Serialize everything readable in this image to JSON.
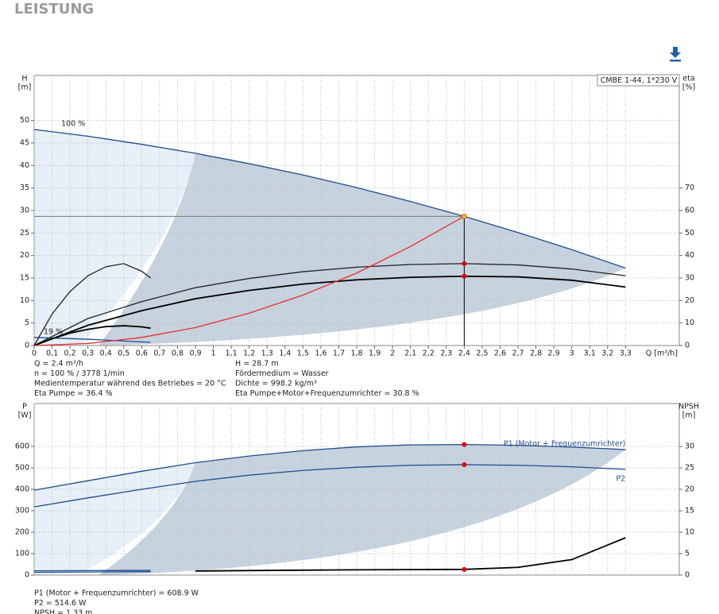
{
  "title": "LEISTUNG",
  "chart_data": [
    {
      "type": "line",
      "y_label": "H",
      "y_unit": "[m]",
      "y2_label": "eta",
      "y2_unit": "[%]",
      "x_label": "Q [m³/h]",
      "legend": "CMBE 1-44, 1*230 V",
      "xlim": [
        0,
        3.6
      ],
      "xticks": [
        0,
        {
          "value": 0.1,
          "label": "0,1"
        },
        {
          "value": 0.2,
          "label": "0,2"
        },
        {
          "value": 0.3,
          "label": "0,3"
        },
        {
          "value": 0.4,
          "label": "0,4"
        },
        {
          "value": 0.5,
          "label": "0,5"
        },
        {
          "value": 0.6,
          "label": "0,6"
        },
        {
          "value": 0.7,
          "label": "0,7"
        },
        {
          "value": 0.8,
          "label": "0,8"
        },
        {
          "value": 0.9,
          "label": "0,9"
        },
        1,
        {
          "value": 1.1,
          "label": "1,1"
        },
        {
          "value": 1.2,
          "label": "1,2"
        },
        {
          "value": 1.3,
          "label": "1,3"
        },
        {
          "value": 1.4,
          "label": "1,4"
        },
        {
          "value": 1.5,
          "label": "1,5"
        },
        {
          "value": 1.6,
          "label": "1,6"
        },
        {
          "value": 1.7,
          "label": "1,7"
        },
        {
          "value": 1.8,
          "label": "1,8"
        },
        {
          "value": 1.9,
          "label": "1,9"
        },
        2,
        {
          "value": 2.1,
          "label": "2,1"
        },
        {
          "value": 2.2,
          "label": "2,2"
        },
        {
          "value": 2.3,
          "label": "2,3"
        },
        {
          "value": 2.4,
          "label": "2,4"
        },
        {
          "value": 2.5,
          "label": "2,5"
        },
        {
          "value": 2.6,
          "label": "2,6"
        },
        {
          "value": 2.7,
          "label": "2,7"
        },
        {
          "value": 2.8,
          "label": "2,8"
        },
        {
          "value": 2.9,
          "label": "2,9"
        },
        3,
        {
          "value": 3.1,
          "label": "3,1"
        },
        {
          "value": 3.2,
          "label": "3,2"
        },
        {
          "value": 3.3,
          "label": "3,3"
        }
      ],
      "ylim": [
        0,
        60
      ],
      "yticks": [
        0,
        5,
        10,
        15,
        20,
        25,
        30,
        35,
        40,
        45,
        50
      ],
      "y2lim": [
        0,
        120
      ],
      "y2ticks": [
        0,
        10,
        20,
        30,
        40,
        50,
        60,
        70
      ],
      "grid": true,
      "guides": true,
      "series_label": "start",
      "series": [
        {
          "name": "100 %",
          "color": "#1f4e8c",
          "x": [
            0,
            0.3,
            0.6,
            0.9,
            1.2,
            1.5,
            1.8,
            2.1,
            2.4,
            2.7,
            3.0,
            3.3
          ],
          "values": [
            48,
            46.5,
            44.7,
            42.7,
            40.4,
            37.9,
            35.1,
            32.0,
            28.7,
            25.1,
            21.3,
            17.2
          ]
        },
        {
          "name": "19 %",
          "color": "#1f4e8c",
          "x": [
            0,
            0.3,
            0.65
          ],
          "values": [
            1.8,
            1.4,
            0.7
          ]
        },
        {
          "color": "#222222",
          "axis": "y2",
          "x": [
            0,
            0.3,
            0.6,
            0.9,
            1.2,
            1.5,
            1.8,
            2.1,
            2.4,
            2.7,
            3.0,
            3.3
          ],
          "values": [
            0,
            12,
            19.5,
            25.7,
            29.8,
            32.8,
            34.8,
            36,
            36.4,
            35.8,
            34,
            31
          ]
        },
        {
          "color": "#000000",
          "axis": "y2",
          "x": [
            0,
            0.3,
            0.6,
            0.9,
            1.2,
            1.5,
            1.8,
            2.1,
            2.4,
            2.7,
            3.0,
            3.3
          ],
          "values": [
            0,
            9,
            15.5,
            20.8,
            24.5,
            27.3,
            29.2,
            30.3,
            30.8,
            30.5,
            29,
            26
          ]
        },
        {
          "color": "#222222",
          "axis": "y2",
          "x": [
            0,
            0.1,
            0.2,
            0.3,
            0.4,
            0.5,
            0.6,
            0.65
          ],
          "values": [
            0,
            14,
            24,
            31,
            35,
            36.4,
            33,
            30
          ]
        },
        {
          "color": "#000000",
          "axis": "y2",
          "x": [
            0,
            0.1,
            0.2,
            0.3,
            0.4,
            0.5,
            0.6,
            0.65
          ],
          "values": [
            0,
            3,
            5.5,
            7.2,
            8.4,
            8.8,
            8.3,
            7.7
          ]
        },
        {
          "color": "#e83030",
          "x": [
            0,
            0.3,
            0.6,
            0.9,
            1.2,
            1.5,
            1.8,
            2.1,
            2.4
          ],
          "values": [
            0,
            0.45,
            1.8,
            4.0,
            7.2,
            11.2,
            16.1,
            22.0,
            28.7
          ]
        }
      ],
      "points": [
        {
          "x": 2.4,
          "y": 28.7,
          "color": "#f2b233"
        },
        {
          "x": 2.4,
          "y": 36.4,
          "axis": "y2",
          "color": "#e00000"
        },
        {
          "x": 2.4,
          "y": 30.8,
          "axis": "y2",
          "color": "#e00000"
        }
      ],
      "info": [
        [
          "Q = 2.4 m³/h",
          "n = 100 % / 3778 1/min",
          "Medientemperatur während des Betriebes = 20 °C",
          "Eta Pumpe = 36.4 %"
        ],
        [
          "H = 28.7 m",
          "Fördermedium = Wasser",
          "Dichte = 998.2 kg/m³",
          "Eta Pumpe+Motor+Frequenzumrichter = 30.8 %"
        ]
      ]
    },
    {
      "type": "line",
      "y_label": "P",
      "y_unit": "[W]",
      "y2_label": "NPSH",
      "y2_unit": "[m]",
      "xlim": [
        0,
        3.6
      ],
      "ylim": [
        0,
        800
      ],
      "yticks": [
        0,
        100,
        200,
        300,
        400,
        500,
        600
      ],
      "y2lim": [
        0,
        40
      ],
      "y2ticks": [
        0,
        5,
        10,
        15,
        20,
        25,
        30
      ],
      "grid": true,
      "series_label": "end",
      "series": [
        {
          "name": "P1 (Motor + Frequenzumrichter)",
          "color": "#1f4e8c",
          "x": [
            0,
            0.3,
            0.6,
            0.9,
            1.2,
            1.5,
            1.8,
            2.1,
            2.4,
            2.7,
            3.0,
            3.3
          ],
          "values": [
            396,
            440,
            484,
            524,
            555,
            580,
            598,
            607,
            608.9,
            605,
            597,
            585
          ]
        },
        {
          "name": "P2",
          "color": "#1f4e8c",
          "x": [
            0,
            0.3,
            0.6,
            0.9,
            1.2,
            1.5,
            1.8,
            2.1,
            2.4,
            2.7,
            3.0,
            3.3
          ],
          "values": [
            318,
            360,
            400,
            437,
            466,
            488,
            503,
            512,
            514.6,
            512,
            505,
            493
          ]
        },
        {
          "color": "#000000",
          "axis": "y2",
          "x": [
            0.9,
            1.2,
            1.5,
            1.8,
            2.1,
            2.4,
            2.7,
            3.0,
            3.3
          ],
          "values": [
            0.95,
            1.05,
            1.15,
            1.22,
            1.28,
            1.33,
            1.8,
            3.6,
            8.7
          ]
        },
        {
          "color": "#1f4e8c",
          "x": [
            0,
            0.65
          ],
          "values": [
            20,
            22
          ]
        },
        {
          "color": "#1f4e8c",
          "x": [
            0,
            0.65
          ],
          "values": [
            13,
            16
          ]
        }
      ],
      "points": [
        {
          "x": 2.4,
          "y": 608.9,
          "color": "#e00000"
        },
        {
          "x": 2.4,
          "y": 514.6,
          "color": "#e00000"
        },
        {
          "x": 2.4,
          "y": 1.33,
          "axis": "y2",
          "color": "#e00000"
        }
      ],
      "info": [
        [
          "P1 (Motor + Frequenzumrichter) = 608.9 W",
          "P2 = 514.6 W",
          "NPSH = 1.33 m"
        ]
      ]
    }
  ]
}
